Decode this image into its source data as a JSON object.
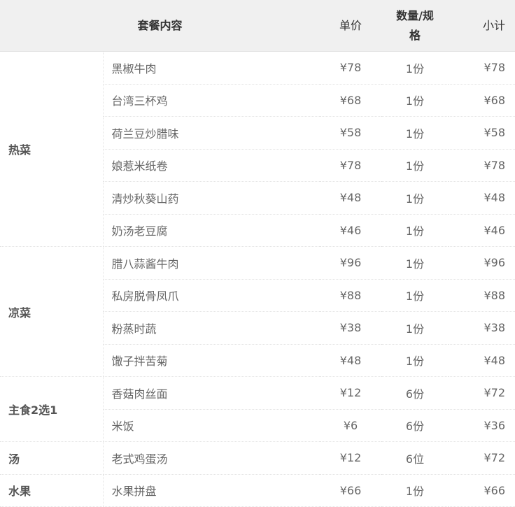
{
  "header": {
    "content": "套餐内容",
    "price": "单价",
    "qty": "数量/规格",
    "subtotal": "小计"
  },
  "groups": [
    {
      "category": "热菜",
      "items": [
        {
          "name": "黑椒牛肉",
          "price": "¥78",
          "qty": "1份",
          "subtotal": "¥78"
        },
        {
          "name": "台湾三杯鸡",
          "price": "¥68",
          "qty": "1份",
          "subtotal": "¥68"
        },
        {
          "name": "荷兰豆炒腊味",
          "price": "¥58",
          "qty": "1份",
          "subtotal": "¥58"
        },
        {
          "name": "娘惹米纸卷",
          "price": "¥78",
          "qty": "1份",
          "subtotal": "¥78"
        },
        {
          "name": "清炒秋葵山药",
          "price": "¥48",
          "qty": "1份",
          "subtotal": "¥48"
        },
        {
          "name": "奶汤老豆腐",
          "price": "¥46",
          "qty": "1份",
          "subtotal": "¥46"
        }
      ]
    },
    {
      "category": "凉菜",
      "items": [
        {
          "name": "腊八蒜酱牛肉",
          "price": "¥96",
          "qty": "1份",
          "subtotal": "¥96"
        },
        {
          "name": "私房脱骨凤爪",
          "price": "¥88",
          "qty": "1份",
          "subtotal": "¥88"
        },
        {
          "name": "粉蒸时蔬",
          "price": "¥38",
          "qty": "1份",
          "subtotal": "¥38"
        },
        {
          "name": "馓子拌苦菊",
          "price": "¥48",
          "qty": "1份",
          "subtotal": "¥48"
        }
      ]
    },
    {
      "category": "主食2选1",
      "items": [
        {
          "name": "香菇肉丝面",
          "price": "¥12",
          "qty": "6份",
          "subtotal": "¥72"
        },
        {
          "name": "米饭",
          "price": "¥6",
          "qty": "6份",
          "subtotal": "¥36"
        }
      ]
    },
    {
      "category": "汤",
      "items": [
        {
          "name": "老式鸡蛋汤",
          "price": "¥12",
          "qty": "6位",
          "subtotal": "¥72"
        }
      ]
    },
    {
      "category": "水果",
      "items": [
        {
          "name": "水果拼盘",
          "price": "¥66",
          "qty": "1份",
          "subtotal": "¥66"
        }
      ]
    }
  ]
}
